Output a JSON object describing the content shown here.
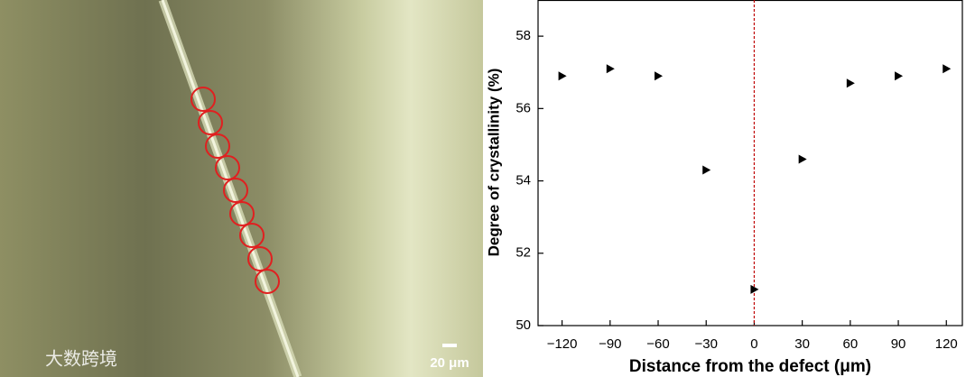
{
  "image": {
    "scale_bar": "20 μm",
    "watermark": "大数跨境"
  },
  "chart_data": {
    "type": "scatter",
    "marker": "triangle-right",
    "color": "#000000",
    "xlabel": "Distance from the defect (μm)",
    "ylabel": "Degree of crystallinity (%)",
    "x": [
      -120,
      -90,
      -60,
      -30,
      0,
      30,
      60,
      90,
      120
    ],
    "values": [
      56.9,
      57.1,
      56.9,
      54.3,
      51.0,
      54.6,
      56.7,
      56.9,
      57.1
    ],
    "xlim": [
      -135,
      130
    ],
    "ylim": [
      50,
      59
    ],
    "xticks": [
      {
        "value": -120,
        "label": "−120"
      },
      {
        "value": -90,
        "label": "−90"
      },
      {
        "value": -60,
        "label": "−60"
      },
      {
        "value": -30,
        "label": "−30"
      },
      0,
      30,
      60,
      90,
      120
    ],
    "yticks": [
      50,
      52,
      54,
      56,
      58
    ],
    "reference_line": {
      "x": 0,
      "color": "#c00000"
    }
  }
}
